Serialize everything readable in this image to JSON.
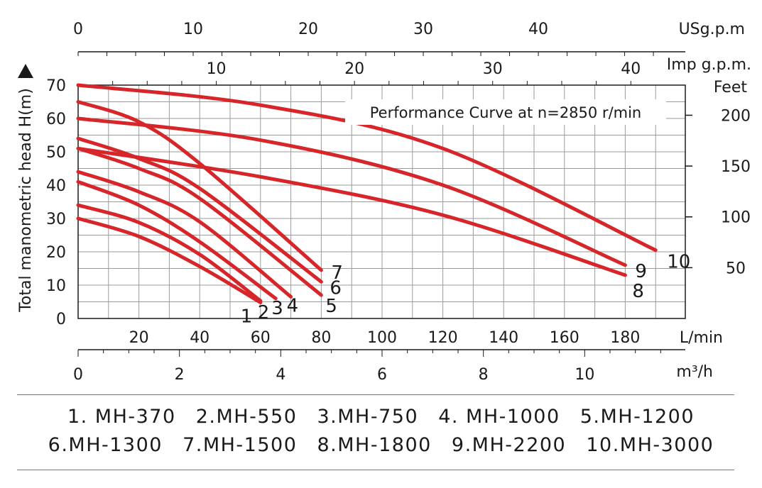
{
  "chart_data": {
    "type": "line",
    "title": "Performance Curve at n=2850 r/min",
    "ylabel": "Total manometric head H(m)",
    "ylim": [
      0,
      70
    ],
    "yticks": [
      "0",
      "10",
      "20",
      "30",
      "40",
      "50",
      "60",
      "70"
    ],
    "xlabel": "L/min",
    "xlim": [
      0,
      200
    ],
    "xticks": [
      "20",
      "40",
      "60",
      "80",
      "100",
      "120",
      "140",
      "160",
      "180"
    ],
    "right_axis": {
      "label": "Feet",
      "ticks": [
        "50",
        "100",
        "150",
        "200"
      ],
      "values": [
        50,
        100,
        150,
        200
      ]
    },
    "axis_m3h": {
      "label": "m³/h",
      "ticks": [
        "0",
        "2",
        "4",
        "6",
        "8",
        "10"
      ],
      "values": [
        0,
        2,
        4,
        6,
        8,
        10
      ]
    },
    "axis_usgpm": {
      "label": "USg.p.m",
      "ticks": [
        "0",
        "10",
        "20",
        "30",
        "40"
      ],
      "values": [
        0,
        10,
        20,
        30,
        40
      ]
    },
    "axis_impgpm": {
      "label": "Imp g.p.m.",
      "ticks": [
        "10",
        "20",
        "30",
        "40"
      ],
      "values": [
        10,
        20,
        30,
        40
      ]
    },
    "grid": true,
    "series": [
      {
        "name": "1",
        "x": [
          0,
          20,
          40,
          60
        ],
        "y": [
          30,
          24.6,
          15.6,
          4.8
        ]
      },
      {
        "name": "2",
        "x": [
          0,
          20,
          40,
          60
        ],
        "y": [
          34,
          28.8,
          19.2,
          5.3
        ]
      },
      {
        "name": "3",
        "x": [
          0,
          20,
          40,
          65
        ],
        "y": [
          41,
          34,
          23,
          6
        ]
      },
      {
        "name": "4",
        "x": [
          0,
          20,
          40,
          70
        ],
        "y": [
          44,
          38,
          29,
          6.5
        ]
      },
      {
        "name": "5",
        "x": [
          0,
          20,
          40,
          80
        ],
        "y": [
          51,
          45,
          36,
          7
        ]
      },
      {
        "name": "6",
        "x": [
          0,
          20,
          40,
          80
        ],
        "y": [
          54,
          48,
          39,
          11
        ]
      },
      {
        "name": "7",
        "x": [
          0,
          20,
          40,
          80
        ],
        "y": [
          65,
          59,
          46.5,
          14.5
        ]
      },
      {
        "name": "8",
        "x": [
          0,
          60,
          120,
          180
        ],
        "y": [
          51,
          42.5,
          31,
          13
        ]
      },
      {
        "name": "9",
        "x": [
          0,
          60,
          120,
          180
        ],
        "y": [
          60,
          53.5,
          40,
          16
        ]
      },
      {
        "name": "10",
        "x": [
          0,
          60,
          120,
          190
        ],
        "y": [
          70,
          64,
          51,
          20.5
        ]
      }
    ]
  },
  "legend": {
    "line1": [
      "1. MH-370",
      "2.MH-550",
      "3.MH-750",
      "4. MH-1000",
      "5.MH-1200"
    ],
    "line2": [
      "6.MH-1300",
      "7.MH-1500",
      "8.MH-1800",
      "9.MH-2200",
      "10.MH-3000"
    ]
  },
  "colors": {
    "curve": "#d6262a",
    "grid": "#9a9a9a",
    "axis": "#1a1a1a"
  }
}
